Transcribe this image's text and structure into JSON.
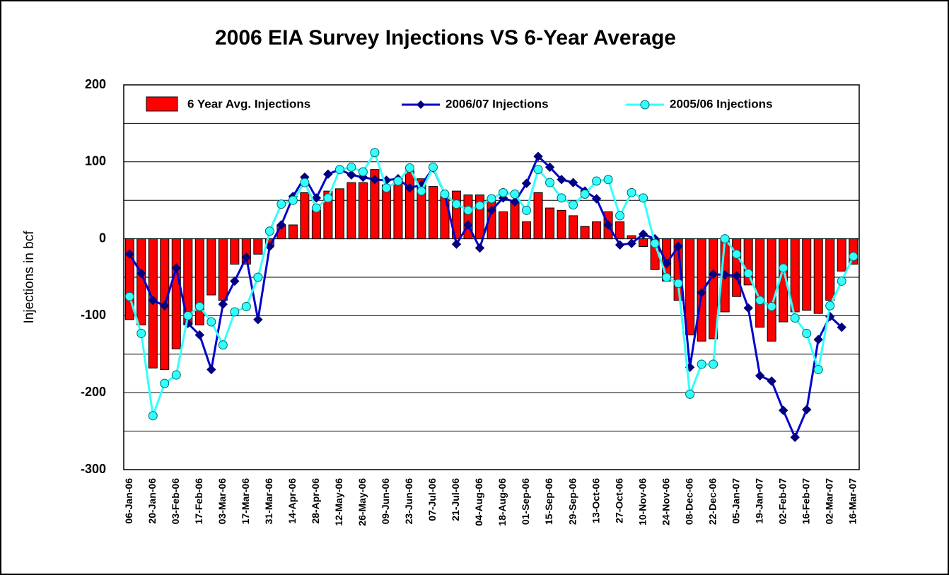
{
  "chart_data": {
    "type": "bar-line",
    "title": "2006 EIA Survey Injections VS 6-Year Average",
    "y_label": "Injections in bcf",
    "categories": [
      "06-Jan-06",
      null,
      "20-Jan-06",
      null,
      "03-Feb-06",
      null,
      "17-Feb-06",
      null,
      "03-Mar-06",
      null,
      "17-Mar-06",
      null,
      "31-Mar-06",
      null,
      "14-Apr-06",
      null,
      "28-Apr-06",
      null,
      "12-May-06",
      null,
      "26-May-06",
      null,
      "09-Jun-06",
      null,
      "23-Jun-06",
      null,
      "07-Jul-06",
      null,
      "21-Jul-06",
      null,
      "04-Aug-06",
      null,
      "18-Aug-06",
      null,
      "01-Sep-06",
      null,
      "15-Sep-06",
      null,
      "29-Sep-06",
      null,
      "13-Oct-06",
      null,
      "27-Oct-06",
      null,
      "10-Nov-06",
      null,
      "24-Nov-06",
      null,
      "08-Dec-06",
      null,
      "22-Dec-06",
      null,
      "05-Jan-07",
      null,
      "19-Jan-07",
      null,
      "02-Feb-07",
      null,
      "16-Feb-07",
      null,
      "02-Mar-07",
      null,
      "16-Mar-07"
    ],
    "series": [
      {
        "name": "6 Year Avg. Injections",
        "kind": "bar",
        "color": "#ff0000",
        "values": [
          -105,
          -112,
          -168,
          -170,
          -143,
          -112,
          -112,
          -73,
          -80,
          -33,
          -33,
          -20,
          -10,
          18,
          18,
          60,
          37,
          62,
          65,
          73,
          73,
          90,
          70,
          78,
          88,
          78,
          68,
          55,
          62,
          57,
          57,
          50,
          35,
          50,
          22,
          60,
          40,
          37,
          30,
          16,
          22,
          35,
          22,
          4,
          -10,
          -40,
          -55,
          -80,
          -125,
          -133,
          -130,
          -95,
          -75,
          -60,
          -115,
          -133,
          -108,
          -95,
          -93,
          -97,
          -80,
          -42,
          -33
        ]
      },
      {
        "name": "2006/07 Injections",
        "kind": "line",
        "marker": "diamond",
        "color": "#0000cc",
        "values": [
          -20,
          -45,
          -80,
          -87,
          -38,
          -110,
          -125,
          -170,
          -85,
          -55,
          -24,
          -105,
          -10,
          18,
          55,
          80,
          53,
          84,
          90,
          83,
          80,
          77,
          76,
          78,
          66,
          70,
          92,
          58,
          -7,
          18,
          -12,
          37,
          53,
          48,
          72,
          107,
          93,
          77,
          73,
          62,
          52,
          18,
          -8,
          -6,
          6,
          0,
          -32,
          -10,
          -167,
          -70,
          -46,
          -47,
          -48,
          -90,
          -178,
          -185,
          -223,
          -258,
          -222,
          -131,
          -101,
          -115,
          null
        ]
      },
      {
        "name": "2005/06 Injections",
        "kind": "line",
        "marker": "circle",
        "color": "#33ffff",
        "values": [
          -75,
          -123,
          -230,
          -188,
          -177,
          -100,
          -88,
          -108,
          -138,
          -95,
          -88,
          -50,
          10,
          45,
          50,
          73,
          40,
          53,
          90,
          93,
          87,
          112,
          66,
          75,
          92,
          62,
          93,
          58,
          45,
          37,
          43,
          52,
          60,
          58,
          37,
          90,
          73,
          53,
          44,
          58,
          75,
          77,
          30,
          60,
          53,
          -6,
          -50,
          -58,
          -202,
          -163,
          -163,
          0,
          -20,
          -45,
          -80,
          -88,
          -38,
          -103,
          -123,
          -170,
          -87,
          -55,
          -23
        ]
      }
    ],
    "ylim": [
      -300,
      200
    ],
    "yticks": [
      -300,
      -200,
      -100,
      0,
      100,
      200
    ],
    "minor_gridlines": [
      -250,
      -150,
      -50,
      50,
      150
    ],
    "grid": true
  }
}
